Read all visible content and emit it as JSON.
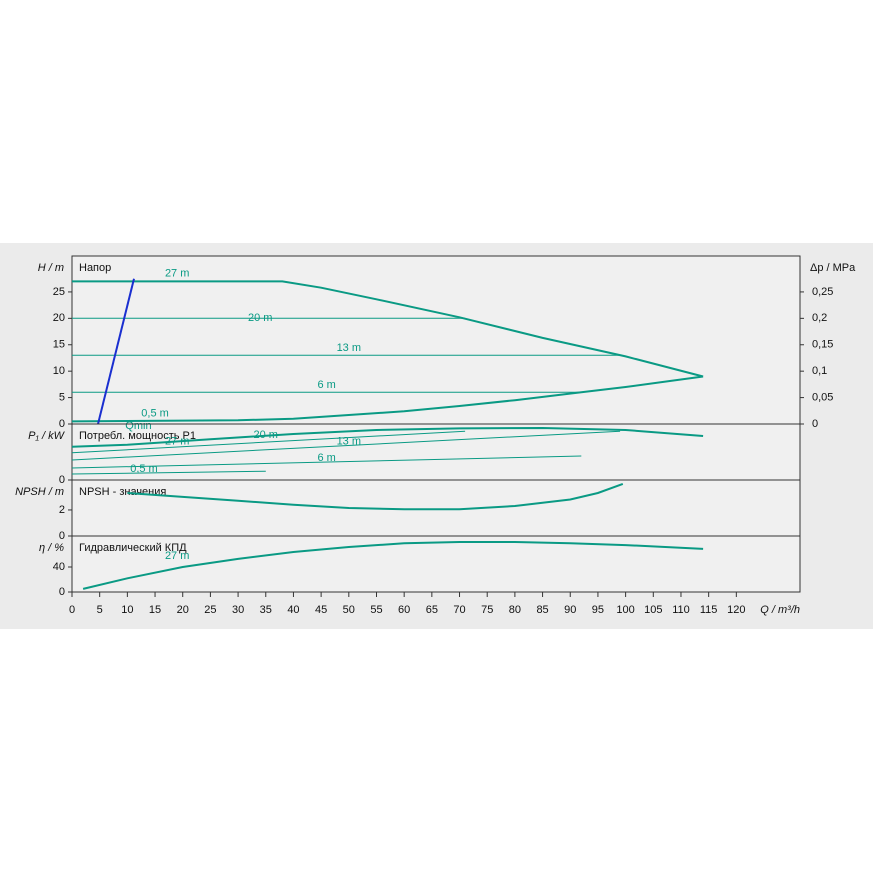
{
  "chart_data": [
    {
      "type": "line",
      "title": "Напор",
      "ylabel": "H / m",
      "y2label": "Δp / MPa",
      "ylim": [
        0,
        31.8
      ],
      "yticks": [
        0,
        5,
        10,
        15,
        20,
        25
      ],
      "y2lim": [
        0,
        0.318
      ],
      "y2ticks": [
        0,
        {
          "value": 0.05,
          "label": "0,05"
        },
        {
          "value": 0.1,
          "label": "0,1"
        },
        {
          "value": 0.15,
          "label": "0,15"
        },
        {
          "value": 0.2,
          "label": "0,2"
        },
        {
          "value": 0.25,
          "label": "0,25"
        }
      ],
      "series": [
        {
          "name": "27 m",
          "color": "#0a9a84",
          "x": [
            0,
            38,
            45,
            55,
            70,
            85,
            100,
            114
          ],
          "values": [
            27,
            27,
            25.8,
            23.6,
            20.2,
            16.3,
            12.8,
            9
          ]
        },
        {
          "name": "20 m",
          "color": "#0a9a84",
          "x": [
            0,
            71
          ],
          "values": [
            20,
            20
          ]
        },
        {
          "name": "13 m",
          "color": "#0a9a84",
          "x": [
            0,
            99
          ],
          "values": [
            13,
            13
          ]
        },
        {
          "name": "6 m",
          "color": "#0a9a84",
          "x": [
            0,
            92
          ],
          "values": [
            6,
            6
          ]
        },
        {
          "name": "0,5 m",
          "color": "#0a9a84",
          "x": [
            0,
            30,
            40,
            50,
            60,
            70,
            80,
            92,
            100,
            114
          ],
          "values": [
            0.5,
            0.7,
            1,
            1.7,
            2.4,
            3.4,
            4.5,
            6,
            7,
            9
          ]
        },
        {
          "name": "Qmin",
          "color": "#1a2fd0",
          "x": [
            4.7,
            11.2
          ],
          "values": [
            0,
            27.5
          ]
        }
      ]
    },
    {
      "type": "line",
      "title": "Потребл. мощность P1",
      "ylabel": "P₁ / kW",
      "ylim": [
        0,
        1.4
      ],
      "yticks": [
        0
      ],
      "series": [
        {
          "name": "27 m",
          "color": "#0a9a84",
          "x": [
            0,
            10,
            25,
            40,
            55,
            70,
            85,
            100,
            114
          ],
          "values": [
            0.83,
            0.88,
            1.02,
            1.15,
            1.25,
            1.29,
            1.3,
            1.25,
            1.1
          ]
        },
        {
          "name": "20 m",
          "color": "#0a9a84",
          "x": [
            0,
            71
          ],
          "values": [
            0.68,
            1.22
          ]
        },
        {
          "name": "13 m",
          "color": "#0a9a84",
          "x": [
            0,
            99
          ],
          "values": [
            0.5,
            1.22
          ]
        },
        {
          "name": "6 m",
          "color": "#0a9a84",
          "x": [
            0,
            92
          ],
          "values": [
            0.3,
            0.6
          ]
        },
        {
          "name": "0,5 m",
          "color": "#0a9a84",
          "x": [
            0,
            35
          ],
          "values": [
            0.15,
            0.22
          ]
        }
      ]
    },
    {
      "type": "line",
      "title": "NPSH - значения",
      "ylabel": "NPSH / m",
      "ylim": [
        0,
        4.3
      ],
      "yticks": [
        0,
        2
      ],
      "series": [
        {
          "color": "#0a9a84",
          "x": [
            10,
            20,
            30,
            40,
            50,
            60,
            70,
            80,
            90,
            95,
            99.5
          ],
          "values": [
            3.3,
            3.0,
            2.7,
            2.4,
            2.15,
            2.05,
            2.05,
            2.3,
            2.8,
            3.3,
            4.0
          ]
        }
      ]
    },
    {
      "type": "line",
      "title": "Гидравлический КПД",
      "ylabel": "η / %",
      "ylim": [
        0,
        89.6
      ],
      "yticks": [
        0,
        40
      ],
      "xlabel": "Q / m³/h",
      "xlim": [
        0,
        131.5
      ],
      "xticks": [
        0,
        5,
        10,
        15,
        20,
        25,
        30,
        35,
        40,
        45,
        50,
        55,
        60,
        65,
        70,
        75,
        80,
        85,
        90,
        95,
        100,
        105,
        110,
        115,
        120
      ],
      "series": [
        {
          "name": "27 m",
          "color": "#0a9a84",
          "x": [
            2,
            10,
            20,
            30,
            40,
            50,
            60,
            70,
            80,
            90,
            100,
            114
          ],
          "values": [
            5,
            22,
            40,
            53,
            64,
            72,
            78,
            80,
            80,
            78,
            75,
            69
          ]
        }
      ]
    }
  ]
}
